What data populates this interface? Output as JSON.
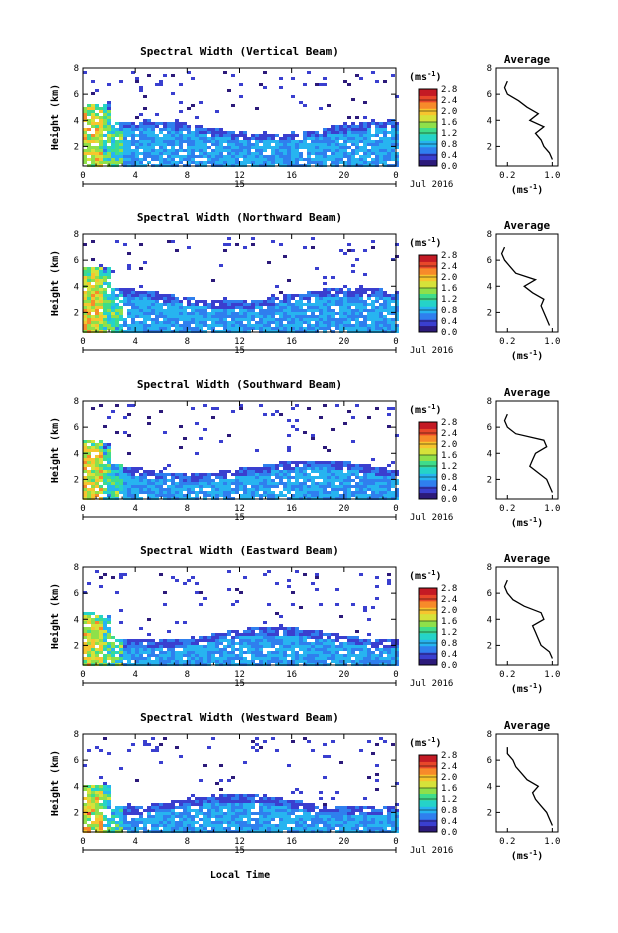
{
  "figure": {
    "xlabel": "Local Time",
    "colors": {
      "colormap": [
        "#2c1a7a",
        "#3a3fcf",
        "#2f7fee",
        "#27b4f0",
        "#25d3c8",
        "#3fdc8a",
        "#8fe04a",
        "#d6e23a",
        "#f7c52e",
        "#f78a2a",
        "#e8472a",
        "#c41a24"
      ],
      "grid": "#000000"
    }
  },
  "chart_data": [
    {
      "type": "heatmap",
      "title": "Spectral Width (Vertical Beam)",
      "ylabel": "Height (km)",
      "date_label": "15",
      "month_label": "Jul 2016",
      "x_ticks": [
        "0",
        "4",
        "8",
        "12",
        "16",
        "20",
        "0"
      ],
      "xlim": [
        0,
        24
      ],
      "y_ticks": [
        "2",
        "4",
        "6",
        "8"
      ],
      "ylim": [
        0.5,
        8
      ],
      "colorbar": {
        "unit": "(ms⁻¹)",
        "ticks": [
          "0.0",
          "0.4",
          "0.8",
          "1.2",
          "1.6",
          "2.0",
          "2.4",
          "2.8"
        ],
        "range": [
          0,
          2.8
        ]
      },
      "layer_top_km": 3.6,
      "average": {
        "title": "Average",
        "xlabel": "(ms⁻¹)",
        "x_ticks": [
          "0.2",
          "1.0"
        ],
        "xlim": [
          0,
          1.1
        ],
        "y_ticks": [
          "2",
          "4",
          "6",
          "8"
        ],
        "ylim": [
          0.5,
          8
        ],
        "height": [
          1.0,
          1.5,
          2.0,
          2.5,
          3.0,
          3.5,
          4.0,
          4.5,
          5.0,
          5.5,
          6.0,
          6.5,
          7.0
        ],
        "value": [
          1.0,
          0.95,
          0.85,
          0.8,
          0.7,
          0.85,
          0.6,
          0.75,
          0.55,
          0.4,
          0.2,
          0.15,
          0.2
        ]
      }
    },
    {
      "type": "heatmap",
      "title": "Spectral Width (Northward Beam)",
      "ylabel": "Height (km)",
      "date_label": "15",
      "month_label": "Jul 2016",
      "x_ticks": [
        "0",
        "4",
        "8",
        "12",
        "16",
        "20",
        "0"
      ],
      "xlim": [
        0,
        24
      ],
      "y_ticks": [
        "2",
        "4",
        "6",
        "8"
      ],
      "ylim": [
        0.5,
        8
      ],
      "colorbar": {
        "unit": "(ms⁻¹)",
        "ticks": [
          "0.0",
          "0.4",
          "0.8",
          "1.2",
          "1.6",
          "2.0",
          "2.4",
          "2.8"
        ],
        "range": [
          0,
          2.8
        ]
      },
      "layer_top_km": 3.5,
      "average": {
        "title": "Average",
        "xlabel": "(ms⁻¹)",
        "x_ticks": [
          "0.2",
          "1.0"
        ],
        "xlim": [
          0,
          1.1
        ],
        "y_ticks": [
          "2",
          "4",
          "6",
          "8"
        ],
        "ylim": [
          0.5,
          8
        ],
        "height": [
          1.0,
          1.5,
          2.0,
          2.5,
          3.0,
          3.5,
          4.0,
          4.5,
          5.0,
          5.5,
          6.0,
          6.5,
          7.0
        ],
        "value": [
          0.95,
          0.9,
          0.85,
          0.8,
          0.85,
          0.65,
          0.5,
          0.7,
          0.35,
          0.25,
          0.15,
          0.1,
          0.15
        ]
      }
    },
    {
      "type": "heatmap",
      "title": "Spectral Width (Southward Beam)",
      "ylabel": "Height (km)",
      "date_label": "15",
      "month_label": "Jul 2016",
      "x_ticks": [
        "0",
        "4",
        "8",
        "12",
        "16",
        "20",
        "0"
      ],
      "xlim": [
        0,
        24
      ],
      "y_ticks": [
        "2",
        "4",
        "6",
        "8"
      ],
      "ylim": [
        0.5,
        8
      ],
      "colorbar": {
        "unit": "(ms⁻¹)",
        "ticks": [
          "0.0",
          "0.4",
          "0.8",
          "1.2",
          "1.6",
          "2.0",
          "2.4",
          "2.8"
        ],
        "range": [
          0,
          2.8
        ]
      },
      "layer_top_km": 3.1,
      "average": {
        "title": "Average",
        "xlabel": "(ms⁻¹)",
        "x_ticks": [
          "0.2",
          "1.0"
        ],
        "xlim": [
          0,
          1.1
        ],
        "y_ticks": [
          "2",
          "4",
          "6",
          "8"
        ],
        "ylim": [
          0.5,
          8
        ],
        "height": [
          1.0,
          1.5,
          2.0,
          2.5,
          3.0,
          3.5,
          4.0,
          4.5,
          5.0,
          5.5,
          6.0,
          6.5,
          7.0
        ],
        "value": [
          1.0,
          0.95,
          0.9,
          0.75,
          0.6,
          0.65,
          0.7,
          0.9,
          0.85,
          0.35,
          0.2,
          0.15,
          0.2
        ]
      }
    },
    {
      "type": "heatmap",
      "title": "Spectral Width (Eastward Beam)",
      "ylabel": "Height (km)",
      "date_label": "15",
      "month_label": "Jul 2016",
      "x_ticks": [
        "0",
        "4",
        "8",
        "12",
        "16",
        "20",
        "0"
      ],
      "xlim": [
        0,
        24
      ],
      "y_ticks": [
        "2",
        "4",
        "6",
        "8"
      ],
      "ylim": [
        0.5,
        8
      ],
      "colorbar": {
        "unit": "(ms⁻¹)",
        "ticks": [
          "0.0",
          "0.4",
          "0.8",
          "1.2",
          "1.6",
          "2.0",
          "2.4",
          "2.8"
        ],
        "range": [
          0,
          2.8
        ]
      },
      "layer_top_km": 3.0,
      "average": {
        "title": "Average",
        "xlabel": "(ms⁻¹)",
        "x_ticks": [
          "0.2",
          "1.0"
        ],
        "xlim": [
          0,
          1.1
        ],
        "y_ticks": [
          "2",
          "4",
          "6",
          "8"
        ],
        "ylim": [
          0.5,
          8
        ],
        "height": [
          1.0,
          1.5,
          2.0,
          2.5,
          3.0,
          3.5,
          4.0,
          4.5,
          5.0,
          5.5,
          6.0,
          6.5,
          7.0
        ],
        "value": [
          1.0,
          0.95,
          0.8,
          0.75,
          0.7,
          0.65,
          0.85,
          0.8,
          0.5,
          0.3,
          0.2,
          0.15,
          0.2
        ]
      }
    },
    {
      "type": "heatmap",
      "title": "Spectral Width (Westward Beam)",
      "ylabel": "Height (km)",
      "date_label": "15",
      "month_label": "Jul 2016",
      "x_ticks": [
        "0",
        "4",
        "8",
        "12",
        "16",
        "20",
        "0"
      ],
      "xlim": [
        0,
        24
      ],
      "y_ticks": [
        "2",
        "4",
        "6",
        "8"
      ],
      "ylim": [
        0.5,
        8
      ],
      "colorbar": {
        "unit": "(ms⁻¹)",
        "ticks": [
          "0.0",
          "0.4",
          "0.8",
          "1.2",
          "1.6",
          "2.0",
          "2.4",
          "2.8"
        ],
        "range": [
          0,
          2.8
        ]
      },
      "layer_top_km": 3.0,
      "average": {
        "title": "Average",
        "xlabel": "(ms⁻¹)",
        "x_ticks": [
          "0.2",
          "1.0"
        ],
        "xlim": [
          0,
          1.1
        ],
        "y_ticks": [
          "2",
          "4",
          "6",
          "8"
        ],
        "ylim": [
          0.5,
          8
        ],
        "height": [
          1.0,
          1.5,
          2.0,
          2.5,
          3.0,
          3.5,
          4.0,
          4.5,
          5.0,
          5.5,
          6.0,
          6.5,
          7.0
        ],
        "value": [
          1.0,
          0.95,
          0.9,
          0.8,
          0.7,
          0.65,
          0.75,
          0.55,
          0.45,
          0.35,
          0.3,
          0.2,
          0.2
        ]
      }
    }
  ]
}
